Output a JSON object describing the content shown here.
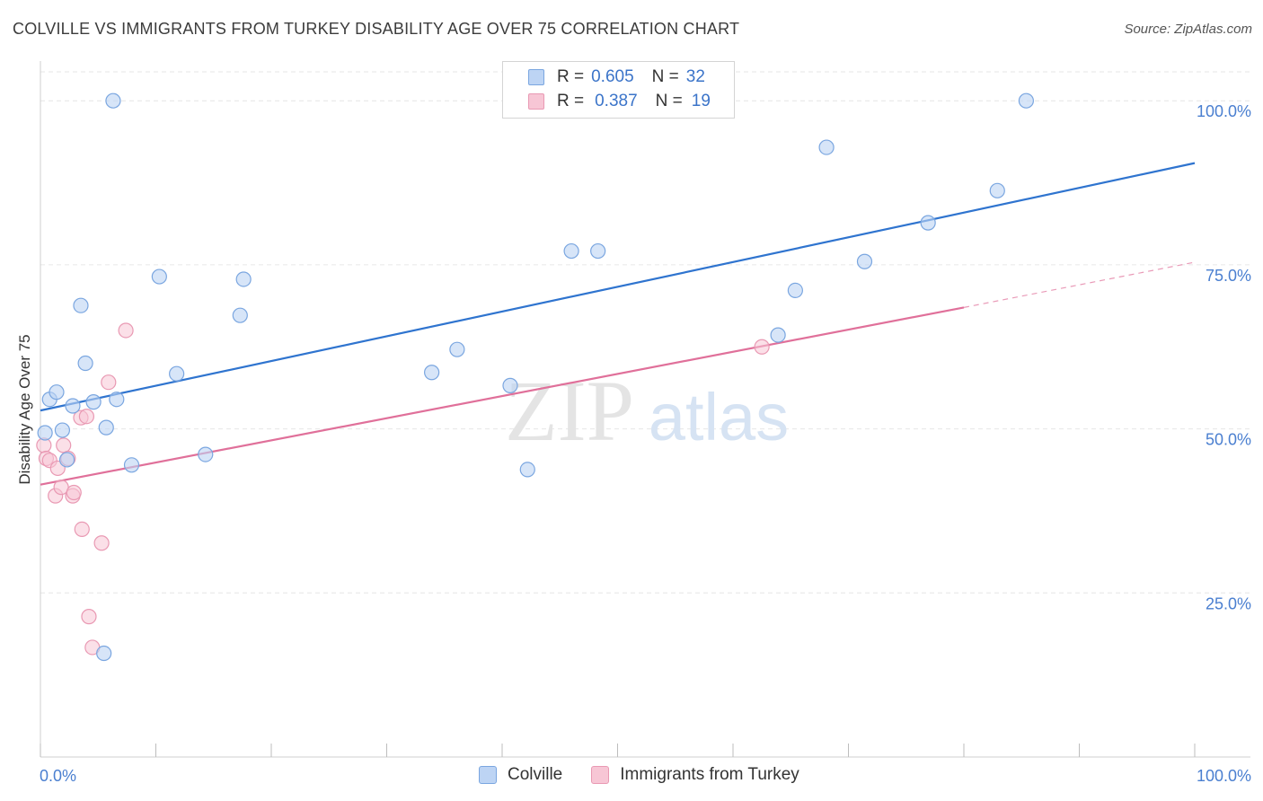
{
  "title": "COLVILLE VS IMMIGRANTS FROM TURKEY DISABILITY AGE OVER 75 CORRELATION CHART",
  "source": "Source: ZipAtlas.com",
  "watermark": {
    "zip": "ZIP",
    "atlas": "atlas"
  },
  "legend": [
    {
      "r_label": "R =",
      "r_value": "0.605",
      "n_label": "N =",
      "n_value": "32"
    },
    {
      "r_label": "R =",
      "r_value": "0.387",
      "n_label": "N =",
      "n_value": "19"
    }
  ],
  "colors": {
    "blue_fill": "#bdd4f4",
    "blue_stroke": "#7aa6e0",
    "blue_line": "#2f74cf",
    "pink_fill": "#f7c6d5",
    "pink_stroke": "#e999b3",
    "pink_line": "#e0709a",
    "grid": "#e6e6e6",
    "tick_label": "#4a7fd0"
  },
  "chart_data": {
    "type": "scatter",
    "title": "COLVILLE VS IMMIGRANTS FROM TURKEY DISABILITY AGE OVER 75 CORRELATION CHART",
    "xlabel": "",
    "ylabel": "Disability Age Over 75",
    "xlim": [
      0,
      100
    ],
    "ylim": [
      0,
      102
    ],
    "x_tick_labels": [
      "0.0%",
      "100.0%"
    ],
    "y_ticks": [
      25,
      50,
      75,
      100
    ],
    "y_tick_labels": [
      "25.0%",
      "50.0%",
      "75.0%",
      "100.0%"
    ],
    "grid": true,
    "legend_position": "top-center",
    "series": [
      {
        "name": "Colville",
        "r": 0.605,
        "n": 32,
        "points": [
          [
            0.4,
            49.4
          ],
          [
            0.8,
            54.5
          ],
          [
            1.4,
            55.6
          ],
          [
            1.9,
            49.8
          ],
          [
            2.3,
            45.3
          ],
          [
            2.8,
            53.5
          ],
          [
            3.5,
            68.8
          ],
          [
            3.9,
            60.0
          ],
          [
            4.6,
            54.1
          ],
          [
            5.7,
            50.2
          ],
          [
            5.5,
            15.8
          ],
          [
            6.6,
            54.5
          ],
          [
            6.3,
            100.0
          ],
          [
            7.9,
            44.5
          ],
          [
            10.3,
            73.2
          ],
          [
            11.8,
            58.4
          ],
          [
            14.3,
            46.1
          ],
          [
            17.3,
            67.3
          ],
          [
            17.6,
            72.8
          ],
          [
            33.9,
            58.6
          ],
          [
            36.1,
            62.1
          ],
          [
            40.7,
            56.6
          ],
          [
            42.2,
            43.8
          ],
          [
            46.0,
            77.1
          ],
          [
            48.3,
            77.1
          ],
          [
            63.9,
            64.3
          ],
          [
            65.4,
            71.1
          ],
          [
            68.1,
            92.9
          ],
          [
            71.4,
            75.5
          ],
          [
            76.9,
            81.4
          ],
          [
            82.9,
            86.3
          ],
          [
            85.4,
            100.0
          ]
        ],
        "trend": {
          "x0": 0,
          "y0": 52.8,
          "x1": 100,
          "y1": 90.5
        }
      },
      {
        "name": "Immigrants from Turkey",
        "r": 0.387,
        "n": 19,
        "points": [
          [
            0.3,
            47.5
          ],
          [
            0.5,
            45.5
          ],
          [
            0.8,
            45.2
          ],
          [
            1.3,
            39.8
          ],
          [
            1.5,
            44.0
          ],
          [
            1.8,
            41.1
          ],
          [
            2.0,
            47.5
          ],
          [
            2.4,
            45.5
          ],
          [
            2.8,
            39.8
          ],
          [
            2.9,
            40.3
          ],
          [
            3.6,
            34.7
          ],
          [
            3.5,
            51.7
          ],
          [
            4.0,
            51.9
          ],
          [
            4.2,
            21.4
          ],
          [
            4.5,
            16.7
          ],
          [
            5.3,
            32.6
          ],
          [
            5.9,
            57.1
          ],
          [
            7.4,
            65.0
          ],
          [
            62.5,
            62.5
          ]
        ],
        "trend": {
          "x0": 0,
          "y0": 41.5,
          "x1": 80,
          "y1": 68.5,
          "dashed_to_x": 100,
          "dashed_to_y": 75.4
        }
      }
    ]
  }
}
